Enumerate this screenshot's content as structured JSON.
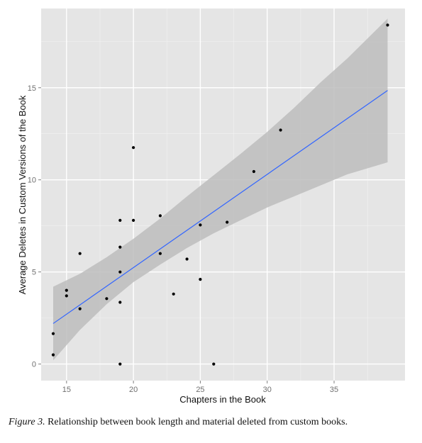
{
  "chart_data": {
    "type": "scatter",
    "title": "",
    "xlabel": "Chapters in the Book",
    "ylabel": "Average Deletes in Custom Versions of the Book",
    "xlim": [
      13.1,
      40.3
    ],
    "ylim": [
      -0.9,
      19.3
    ],
    "x_ticks": [
      15,
      20,
      25,
      30,
      35
    ],
    "y_ticks": [
      0,
      5,
      10,
      15
    ],
    "grid": true,
    "legend": "none",
    "points": [
      {
        "x": 14,
        "y": 0.5
      },
      {
        "x": 14,
        "y": 1.65
      },
      {
        "x": 15,
        "y": 3.7
      },
      {
        "x": 15,
        "y": 4.0
      },
      {
        "x": 16,
        "y": 3.0
      },
      {
        "x": 16,
        "y": 6.0
      },
      {
        "x": 18,
        "y": 3.55
      },
      {
        "x": 19,
        "y": 0.0
      },
      {
        "x": 19,
        "y": 3.35
      },
      {
        "x": 19,
        "y": 5.0
      },
      {
        "x": 19,
        "y": 6.35
      },
      {
        "x": 19,
        "y": 7.8
      },
      {
        "x": 20,
        "y": 7.8
      },
      {
        "x": 20,
        "y": 11.75
      },
      {
        "x": 22,
        "y": 6.0
      },
      {
        "x": 22,
        "y": 8.05
      },
      {
        "x": 23,
        "y": 3.8
      },
      {
        "x": 24,
        "y": 5.7
      },
      {
        "x": 25,
        "y": 4.6
      },
      {
        "x": 25,
        "y": 7.55
      },
      {
        "x": 26,
        "y": 0.0
      },
      {
        "x": 27,
        "y": 7.7
      },
      {
        "x": 29,
        "y": 10.45
      },
      {
        "x": 31,
        "y": 12.7
      },
      {
        "x": 39,
        "y": 18.4
      }
    ],
    "fit_line": [
      {
        "x": 14,
        "y": 2.2
      },
      {
        "x": 39,
        "y": 14.85
      }
    ],
    "confidence_band": {
      "x": [
        14,
        16,
        18,
        20,
        22,
        24,
        26,
        28,
        30,
        32,
        34,
        36,
        39
      ],
      "lower": [
        0.2,
        1.85,
        3.25,
        4.45,
        5.4,
        6.3,
        7.1,
        7.8,
        8.5,
        9.1,
        9.7,
        10.3,
        10.95
      ],
      "upper": [
        4.2,
        4.9,
        5.8,
        6.8,
        7.9,
        9.1,
        10.25,
        11.4,
        12.6,
        13.9,
        15.3,
        16.6,
        18.75
      ]
    },
    "colors": {
      "panel": "#e5e5e5",
      "grid": "#ffffff",
      "points": "#000000",
      "fit_line": "#3366ff",
      "band": "#bdbdbd"
    }
  },
  "caption": {
    "figure_label": "Figure 3.",
    "text": " Relationship between book length and material deleted from custom books."
  }
}
